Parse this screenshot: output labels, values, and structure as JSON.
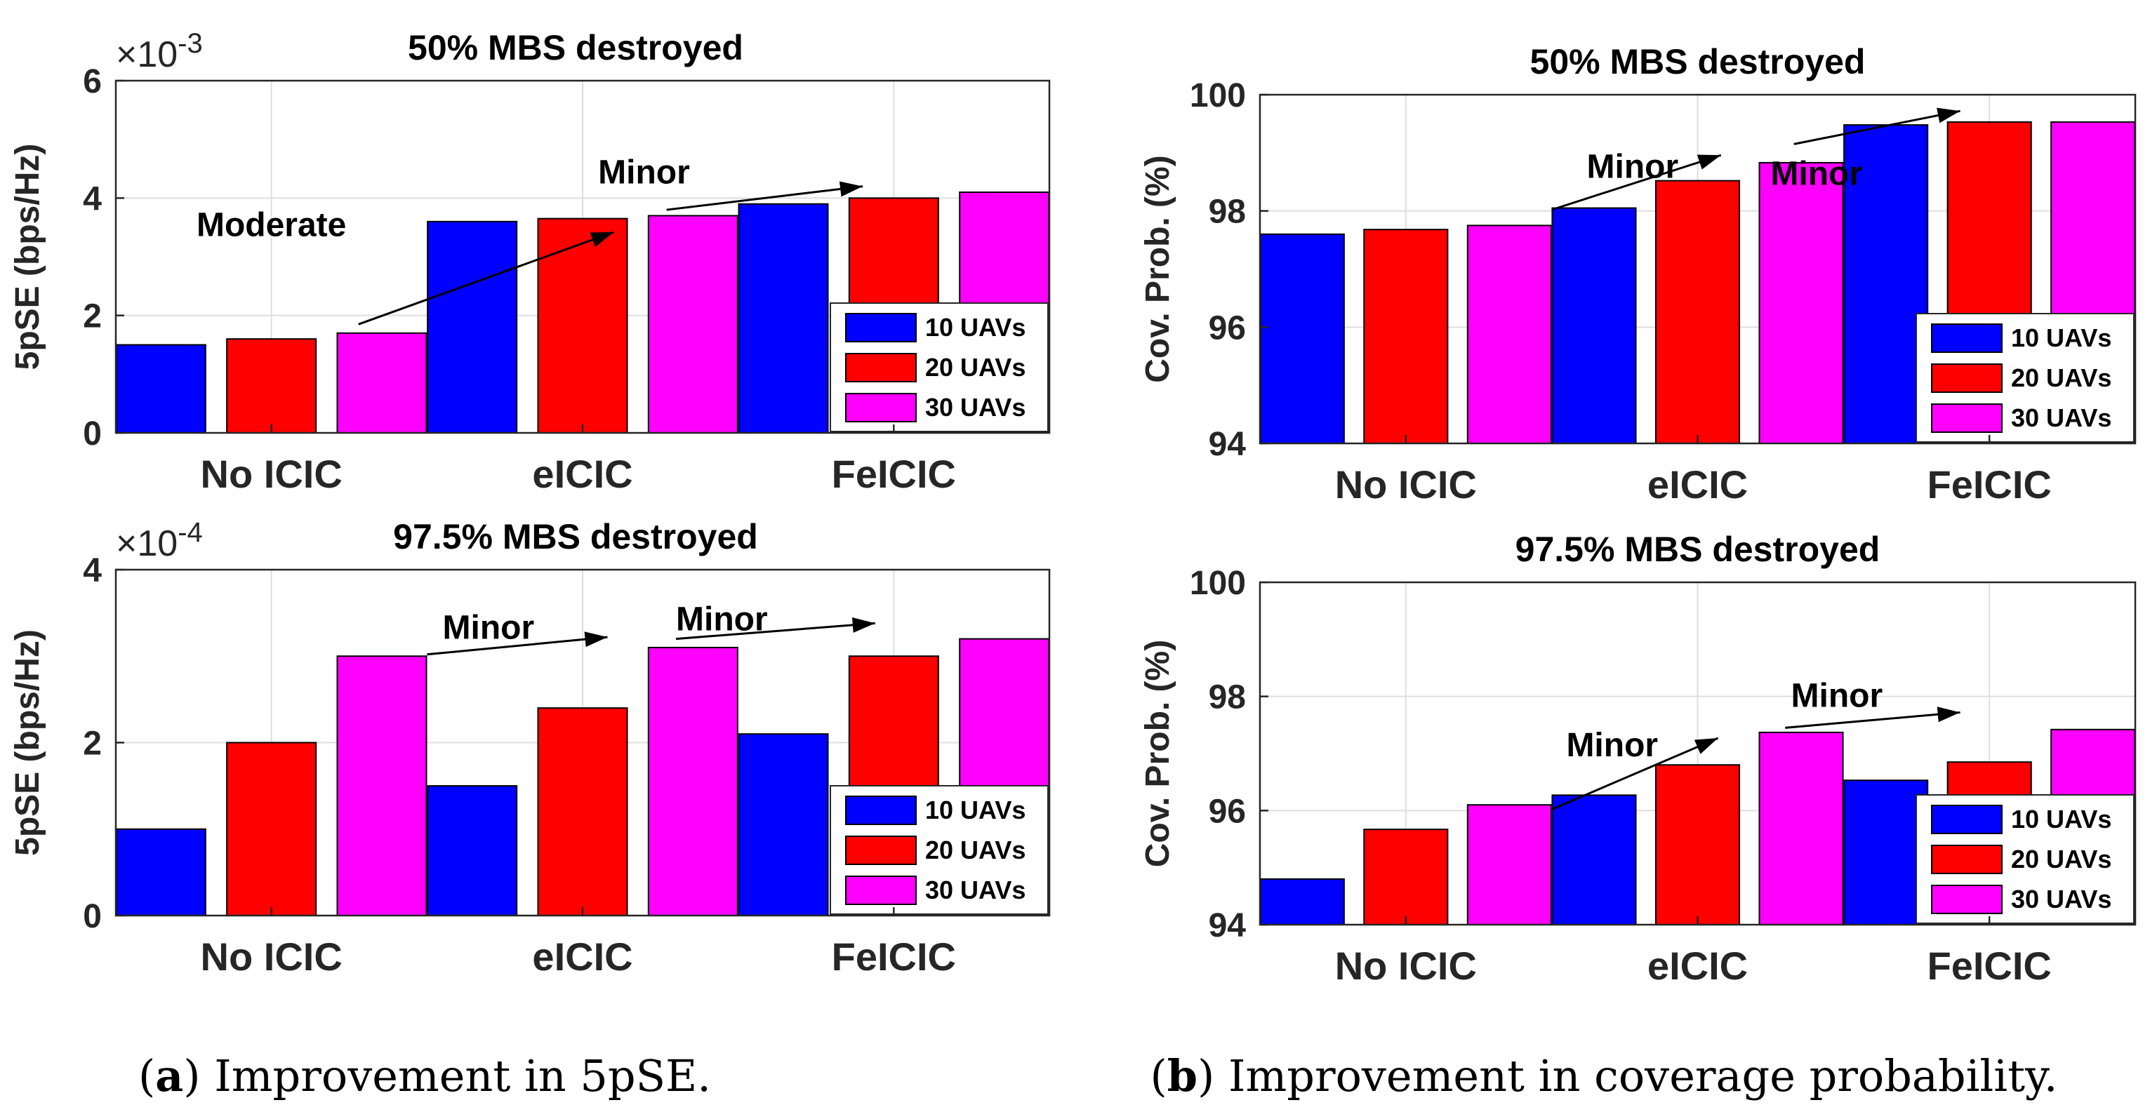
{
  "figure": {
    "caption_a": {
      "letter": "a",
      "text": " Improvement in 5pSE."
    },
    "caption_b": {
      "letter": "b",
      "text": " Improvement in coverage probability."
    }
  },
  "colors": {
    "series": [
      "#0000ff",
      "#ff0000",
      "#ff00ff"
    ],
    "grid": "#dedede",
    "axis": "#262626"
  },
  "chart_data": [
    {
      "id": "a-top",
      "type": "bar",
      "title": "50% MBS destroyed",
      "ylabel": "5pSE (bps/Hz)",
      "exponent": "-3",
      "ylim": [
        0,
        6
      ],
      "yticks": [
        "0",
        "2",
        "4",
        "6"
      ],
      "categories": [
        "No ICIC",
        "eICIC",
        "FeICIC"
      ],
      "series": [
        {
          "name": "10 UAVs",
          "values": [
            1.5,
            3.6,
            3.9
          ]
        },
        {
          "name": "20 UAVs",
          "values": [
            1.6,
            3.65,
            4.0
          ]
        },
        {
          "name": "30 UAVs",
          "values": [
            1.7,
            3.7,
            4.1
          ]
        }
      ],
      "legend": "bottom-right",
      "annotations": [
        {
          "text": "Moderate",
          "x1": 0.78,
          "y1": 1.85,
          "x2": 1.6,
          "y2": 3.42,
          "tx": 0.5,
          "ty": 3.35,
          "anchor": "middle"
        },
        {
          "text": "Minor",
          "x1": 1.77,
          "y1": 3.8,
          "x2": 2.4,
          "y2": 4.2,
          "tx": 1.55,
          "ty": 4.25,
          "anchor": "start"
        }
      ]
    },
    {
      "id": "a-bottom",
      "type": "bar",
      "title": "97.5% MBS destroyed",
      "ylabel": "5pSE (bps/Hz)",
      "exponent": "-4",
      "ylim": [
        0,
        4
      ],
      "yticks": [
        "0",
        "2",
        "4"
      ],
      "categories": [
        "No ICIC",
        "eICIC",
        "FeICIC"
      ],
      "series": [
        {
          "name": "10 UAVs",
          "values": [
            1.0,
            1.5,
            2.1
          ]
        },
        {
          "name": "20 UAVs",
          "values": [
            2.0,
            2.4,
            3.0
          ]
        },
        {
          "name": "30 UAVs",
          "values": [
            3.0,
            3.1,
            3.2
          ]
        }
      ],
      "legend": "bottom-right",
      "annotations": [
        {
          "text": "Minor",
          "x1": 1.0,
          "y1": 3.02,
          "x2": 1.58,
          "y2": 3.22,
          "tx": 1.05,
          "ty": 3.2,
          "anchor": "start"
        },
        {
          "text": "Minor",
          "x1": 1.8,
          "y1": 3.2,
          "x2": 2.44,
          "y2": 3.38,
          "tx": 1.8,
          "ty": 3.3,
          "anchor": "start"
        }
      ]
    },
    {
      "id": "b-top",
      "type": "bar",
      "title": "50% MBS destroyed",
      "ylabel": "Cov. Prob. (%)",
      "ylim": [
        94,
        100
      ],
      "yticks": [
        "94",
        "96",
        "98",
        "100"
      ],
      "categories": [
        "No ICIC",
        "eICIC",
        "FeICIC"
      ],
      "series": [
        {
          "name": "10 UAVs",
          "values": [
            97.6,
            98.05,
            99.48
          ]
        },
        {
          "name": "20 UAVs",
          "values": [
            97.68,
            98.52,
            99.53
          ]
        },
        {
          "name": "30 UAVs",
          "values": [
            97.75,
            98.83,
            99.53
          ]
        }
      ],
      "legend": "bottom-right",
      "annotations": [
        {
          "text": "Minor",
          "x1": 1.0,
          "y1": 98.02,
          "x2": 1.58,
          "y2": 98.96,
          "tx": 1.12,
          "ty": 98.57,
          "anchor": "start"
        },
        {
          "text": "Minor",
          "x1": 1.83,
          "y1": 99.15,
          "x2": 2.4,
          "y2": 99.72,
          "tx": 1.75,
          "ty": 98.45,
          "anchor": "start"
        }
      ]
    },
    {
      "id": "b-bottom",
      "type": "bar",
      "title": "97.5% MBS destroyed",
      "ylabel": "Cov. Prob. (%)",
      "ylim": [
        94,
        100
      ],
      "yticks": [
        "94",
        "96",
        "98",
        "100"
      ],
      "categories": [
        "No ICIC",
        "eICIC",
        "FeICIC"
      ],
      "series": [
        {
          "name": "10 UAVs",
          "values": [
            94.8,
            96.27,
            96.53
          ]
        },
        {
          "name": "20 UAVs",
          "values": [
            95.67,
            96.8,
            96.85
          ]
        },
        {
          "name": "30 UAVs",
          "values": [
            96.1,
            97.37,
            97.42
          ]
        }
      ],
      "legend": "bottom-right",
      "annotations": [
        {
          "text": "Minor",
          "x1": 1.0,
          "y1": 96.02,
          "x2": 1.57,
          "y2": 97.27,
          "tx": 1.05,
          "ty": 96.95,
          "anchor": "start"
        },
        {
          "text": "Minor",
          "x1": 1.8,
          "y1": 97.45,
          "x2": 2.4,
          "y2": 97.72,
          "tx": 1.82,
          "ty": 97.82,
          "anchor": "start"
        }
      ]
    }
  ]
}
